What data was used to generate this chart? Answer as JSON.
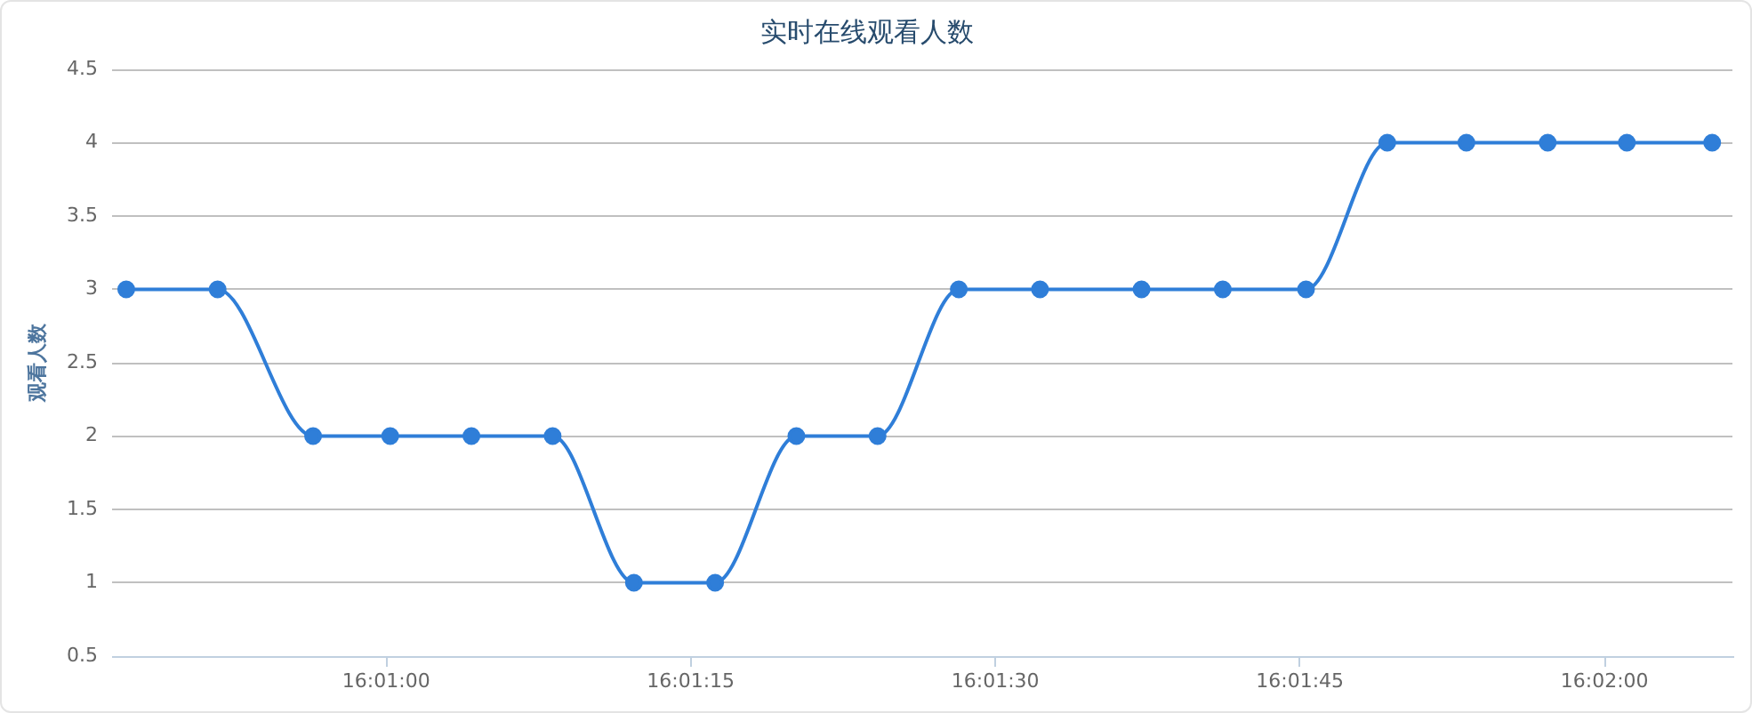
{
  "chart_data": {
    "type": "line",
    "title": "实时在线观看人数",
    "ylabel": "观看人数",
    "x": [
      16.013111,
      16.014361,
      16.015667,
      16.016722,
      16.017833,
      16.018944,
      16.020056,
      16.021167,
      16.022278,
      16.023389,
      16.0245,
      16.025611,
      16.027,
      16.028111,
      16.02925,
      16.030361,
      16.031444,
      16.032556,
      16.033639,
      16.034806
    ],
    "series": [
      {
        "color": "#2f7ed8",
        "values": [
          3,
          3,
          2,
          2,
          2,
          2,
          1,
          1,
          2,
          2,
          3,
          3,
          3,
          3,
          3,
          4,
          4,
          4,
          4,
          4
        ]
      }
    ],
    "xlim": [
      16.012917,
      16.035083
    ],
    "xticks": [
      {
        "value": 16.016667,
        "label": "16:01:00"
      },
      {
        "value": 16.020833,
        "label": "16:01:15"
      },
      {
        "value": 16.025,
        "label": "16:01:30"
      },
      {
        "value": 16.029167,
        "label": "16:01:45"
      },
      {
        "value": 16.033333,
        "label": "16:02:00"
      }
    ],
    "ylim": [
      0.5,
      4.5
    ],
    "yticks": [
      0.5,
      1,
      1.5,
      2,
      2.5,
      3,
      3.5,
      4,
      4.5
    ],
    "grid": "y",
    "marker": "circle",
    "line_style": "solid"
  }
}
